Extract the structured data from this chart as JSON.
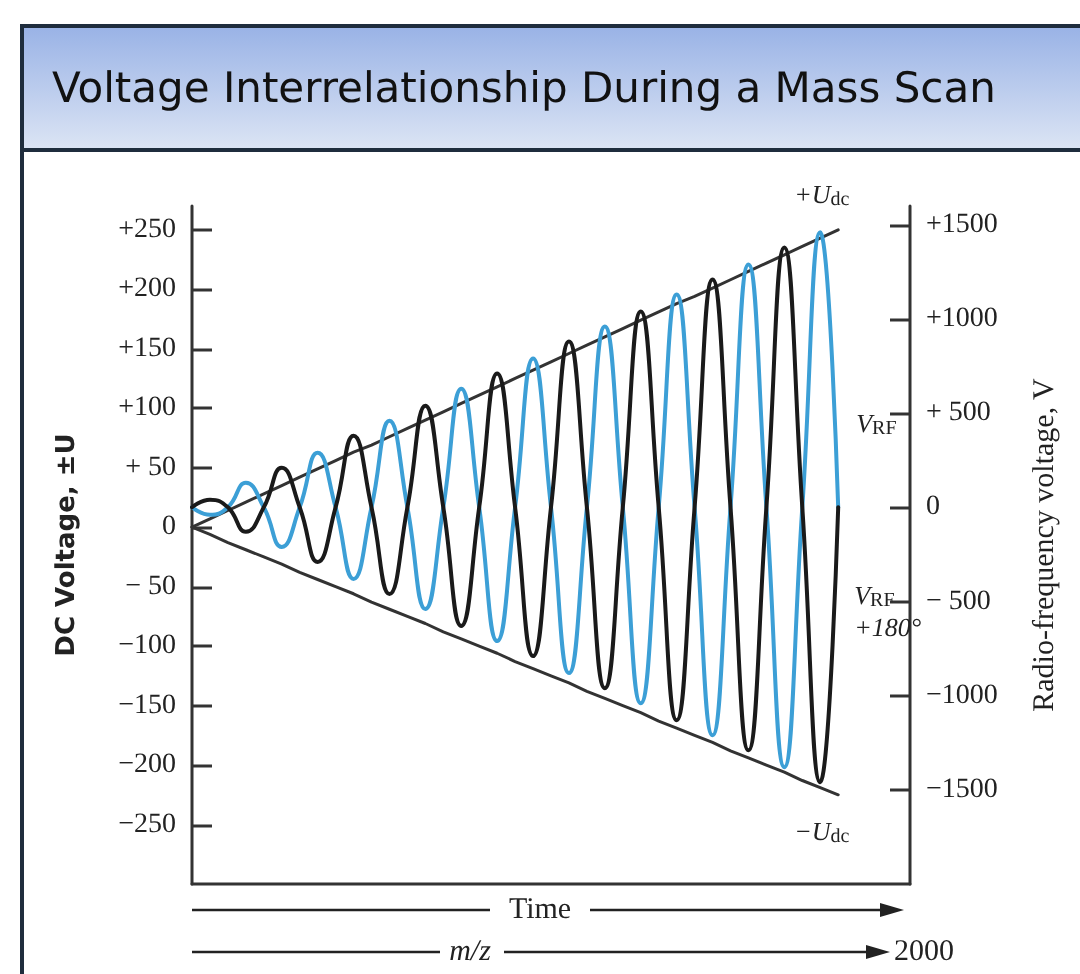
{
  "chart_data": {
    "type": "line",
    "title": "Voltage Interrelationship  During a Mass Scan",
    "xlabel": "Time",
    "ylabel": "DC Voltage, ±U",
    "y2label": "Radio-frequency voltage, V",
    "categories": [
      null,
      null,
      null,
      null,
      null,
      null,
      null,
      null,
      null,
      null,
      null,
      null,
      null,
      null,
      null,
      null,
      null,
      null,
      null,
      null,
      null,
      null,
      null,
      null,
      null,
      null,
      null,
      null,
      null,
      null,
      null,
      null,
      null,
      null,
      null,
      null,
      null,
      null,
      null,
      null,
      null
    ],
    "series": [
      {
        "name": "+U$_{dc}$",
        "color": "#333333",
        "values": [
          0,
          7,
          14,
          21,
          28,
          35,
          42,
          49,
          56,
          63,
          69,
          76,
          83,
          90,
          97,
          104,
          111,
          118,
          125,
          132,
          139,
          146,
          153,
          160,
          167,
          174,
          181,
          188,
          194,
          201,
          208,
          215,
          222,
          229,
          236,
          243,
          250,
          null,
          null,
          null,
          null
        ]
      },
      {
        "name": "−U$_{dc}$",
        "color": "#333333",
        "values": [
          0,
          -6,
          -13,
          -19,
          -25,
          -31,
          -38,
          -44,
          -50,
          -56,
          -63,
          -69,
          -75,
          -81,
          -88,
          -94,
          -100,
          -106,
          -113,
          -119,
          -125,
          -131,
          -138,
          -144,
          -150,
          -156,
          -163,
          -169,
          -175,
          -181,
          -188,
          -194,
          -200,
          -206,
          -213,
          -219,
          -225,
          null,
          null,
          null,
          null
        ]
      },
      {
        "name": "V$_{RF}$",
        "color": "#3c9fd6",
        "axis": "y2",
        "values": [
          0,
          -40,
          0,
          130,
          0,
          -210,
          0,
          290,
          0,
          -380,
          0,
          460,
          0,
          -540,
          0,
          630,
          0,
          -710,
          0,
          790,
          0,
          -880,
          0,
          960,
          0,
          -1040,
          0,
          1130,
          0,
          -1210,
          0,
          1290,
          0,
          -1380,
          0,
          1460,
          0,
          null,
          null,
          null,
          null
        ]
      },
      {
        "name": "V$_{RF}$ +180°",
        "color": "#1a1a1a",
        "axis": "y2",
        "values": [
          0,
          40,
          0,
          -130,
          0,
          210,
          0,
          -290,
          0,
          380,
          0,
          -460,
          0,
          540,
          0,
          -630,
          0,
          710,
          0,
          -790,
          0,
          880,
          0,
          -960,
          0,
          1040,
          0,
          -1130,
          0,
          1210,
          0,
          -1290,
          0,
          1380,
          0,
          -1460,
          0,
          null,
          null,
          null,
          null
        ]
      }
    ],
    "ylim": [
      -300,
      270
    ],
    "yticks": [
      {
        "value": -250,
        "label": "−250"
      },
      {
        "value": -200,
        "label": "−200"
      },
      {
        "value": -150,
        "label": "−150"
      },
      {
        "value": -100,
        "label": "−100"
      },
      {
        "value": -50,
        "label": "− 50"
      },
      0,
      {
        "value": 50,
        "label": "+ 50"
      },
      {
        "value": 100,
        "label": "+100"
      },
      {
        "value": 150,
        "label": "+150"
      },
      {
        "value": 200,
        "label": "+200"
      },
      {
        "value": 250,
        "label": "+250"
      }
    ],
    "y2lim": [
      -2000,
      1600
    ],
    "y2ticks": [
      {
        "value": -1500,
        "label": "−1500"
      },
      {
        "value": -1000,
        "label": "−1000"
      },
      {
        "value": -500,
        "label": "− 500"
      },
      0,
      {
        "value": 500,
        "label": "+ 500"
      },
      {
        "value": 1000,
        "label": "+1000"
      },
      {
        "value": 1500,
        "label": "+1500"
      }
    ],
    "tick_labels": "y",
    "annotations": [
      "m/z",
      "2000"
    ],
    "grid": false,
    "legend": false,
    "line_style": "solid"
  }
}
